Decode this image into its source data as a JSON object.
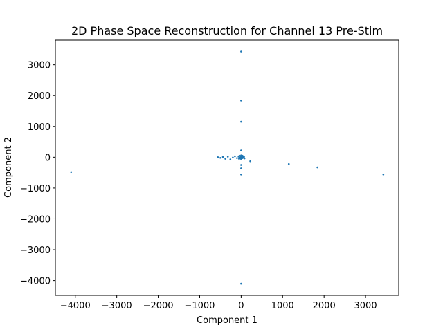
{
  "chart_data": {
    "type": "scatter",
    "title": "2D Phase Space Reconstruction for Channel 13 Pre-Stim",
    "xlabel": "Component 1",
    "ylabel": "Component 2",
    "xlim": [
      -4480,
      3800
    ],
    "ylim": [
      -4480,
      3800
    ],
    "xticks": [
      -4000,
      -3000,
      -2000,
      -1000,
      0,
      1000,
      2000,
      3000
    ],
    "yticks": [
      -4000,
      -3000,
      -2000,
      -1000,
      0,
      1000,
      2000,
      3000
    ],
    "xtick_labels": [
      "−4000",
      "−3000",
      "−2000",
      "−1000",
      "0",
      "1000",
      "2000",
      "3000"
    ],
    "ytick_labels": [
      "−4000",
      "−3000",
      "−2000",
      "−1000",
      "0",
      "1000",
      "2000",
      "3000"
    ],
    "grid": false,
    "marker_color": "#1f77b4",
    "points": [
      {
        "x": 0,
        "y": 3430
      },
      {
        "x": 0,
        "y": 1840
      },
      {
        "x": 0,
        "y": 1150
      },
      {
        "x": 0,
        "y": 220
      },
      {
        "x": 0,
        "y": -250
      },
      {
        "x": 0,
        "y": -360
      },
      {
        "x": 0,
        "y": -560
      },
      {
        "x": 0,
        "y": -4100
      },
      {
        "x": -4100,
        "y": -480
      },
      {
        "x": 3430,
        "y": -560
      },
      {
        "x": 1840,
        "y": -330
      },
      {
        "x": 1150,
        "y": -220
      },
      {
        "x": 220,
        "y": -130
      },
      {
        "x": -560,
        "y": 0
      },
      {
        "x": -500,
        "y": -20
      },
      {
        "x": -440,
        "y": 10
      },
      {
        "x": -380,
        "y": -50
      },
      {
        "x": -320,
        "y": 20
      },
      {
        "x": -260,
        "y": -70
      },
      {
        "x": -200,
        "y": -10
      },
      {
        "x": -150,
        "y": 30
      },
      {
        "x": -100,
        "y": -30
      },
      {
        "x": -60,
        "y": 20
      },
      {
        "x": -30,
        "y": -10
      },
      {
        "x": -10,
        "y": 10
      },
      {
        "x": 10,
        "y": -10
      },
      {
        "x": 20,
        "y": 20
      },
      {
        "x": 30,
        "y": -30
      },
      {
        "x": 40,
        "y": 0
      },
      {
        "x": 50,
        "y": 30
      },
      {
        "x": 60,
        "y": -20
      },
      {
        "x": 10,
        "y": 40
      },
      {
        "x": -20,
        "y": -40
      },
      {
        "x": 0,
        "y": 60
      },
      {
        "x": 0,
        "y": -60
      },
      {
        "x": 70,
        "y": 10
      },
      {
        "x": -40,
        "y": 50
      },
      {
        "x": 30,
        "y": 50
      },
      {
        "x": -50,
        "y": -50
      },
      {
        "x": 80,
        "y": -40
      }
    ]
  }
}
